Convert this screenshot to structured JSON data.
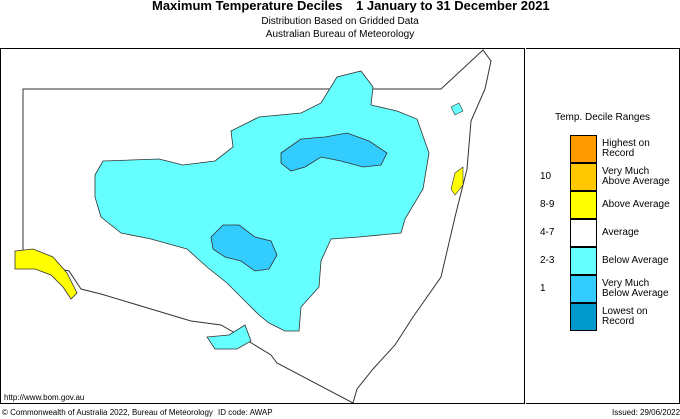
{
  "header": {
    "title": "Maximum Temperature Deciles",
    "period": "1 January to 31 December 2021",
    "subtitle_1": "Distribution Based on Gridded Data",
    "subtitle_2": "Australian Bureau of Meteorology"
  },
  "legend": {
    "title": "Temp. Decile Ranges",
    "items": [
      {
        "number": "",
        "label_1": "Highest on",
        "label_2": "Record",
        "color": "#ff9a00"
      },
      {
        "number": "10",
        "label_1": "Very Much",
        "label_2": "Above Average",
        "color": "#ffc800"
      },
      {
        "number": "8-9",
        "label_1": "Above Average",
        "label_2": "",
        "color": "#ffff00"
      },
      {
        "number": "4-7",
        "label_1": "Average",
        "label_2": "",
        "color": "#ffffff"
      },
      {
        "number": "2-3",
        "label_1": "Below Average",
        "label_2": "",
        "color": "#66ffff"
      },
      {
        "number": "1",
        "label_1": "Very Much",
        "label_2": "Below Average",
        "color": "#33ccff"
      },
      {
        "number": "",
        "label_1": "Lowest on",
        "label_2": "Record",
        "color": "#0099cc"
      }
    ]
  },
  "footer": {
    "url": "http://www.bom.gov.au",
    "copyright": "© Commonwealth of Australia 2022, Bureau of Meteorology",
    "id_code": "ID code: AWAP",
    "issued": "Issued: 29/06/2022"
  }
}
